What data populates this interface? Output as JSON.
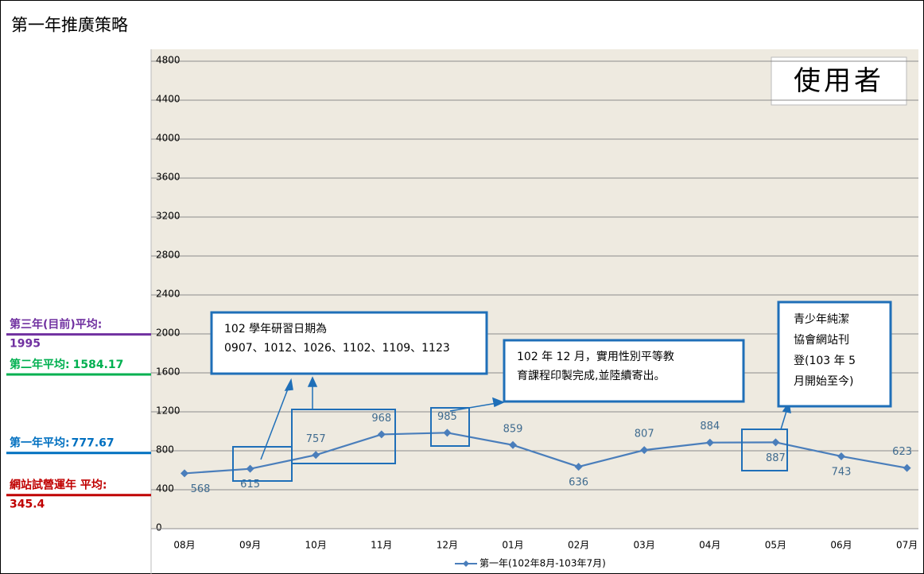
{
  "chart_data": {
    "type": "line",
    "title": "第一年推廣策略",
    "categories": [
      "08月",
      "09月",
      "10月",
      "11月",
      "12月",
      "01月",
      "02月",
      "03月",
      "04月",
      "05月",
      "06月",
      "07月"
    ],
    "series": [
      {
        "name": "第一年(102年8月-103年7月)",
        "color": "#4a7ebb",
        "values": [
          568,
          615,
          757,
          968,
          985,
          859,
          636,
          807,
          884,
          887,
          743,
          623
        ]
      }
    ],
    "ylim": [
      0,
      4800
    ],
    "yticks": [
      0,
      400,
      800,
      1200,
      1600,
      2000,
      2400,
      2800,
      3200,
      3600,
      4000,
      4400,
      4800
    ],
    "grid": true,
    "legend": "bottom",
    "badge": "使用者",
    "averages": [
      {
        "name": "第三年(目前)平均:",
        "value": 1995,
        "color": "#7030a0"
      },
      {
        "name": "第二年平均:",
        "value": 1584.17,
        "color": "#00b050"
      },
      {
        "name": "第一年平均:",
        "value": 777.67,
        "color": "#0070c0"
      },
      {
        "name": "網站試營運年 平均:",
        "value": 345.4,
        "color": "#c00000"
      }
    ],
    "annotations": [
      {
        "lines": [
          "102 學年研習日期為",
          "0907、1012、1026、1102、1109、1123"
        ]
      },
      {
        "lines": [
          "102 年 12 月，實用性別平等教",
          "育課程印製完成,並陸續寄出。"
        ]
      },
      {
        "lines": [
          "青少年純潔",
          "協會網站刊",
          "登(103 年 5",
          "月開始至今)"
        ]
      }
    ]
  }
}
